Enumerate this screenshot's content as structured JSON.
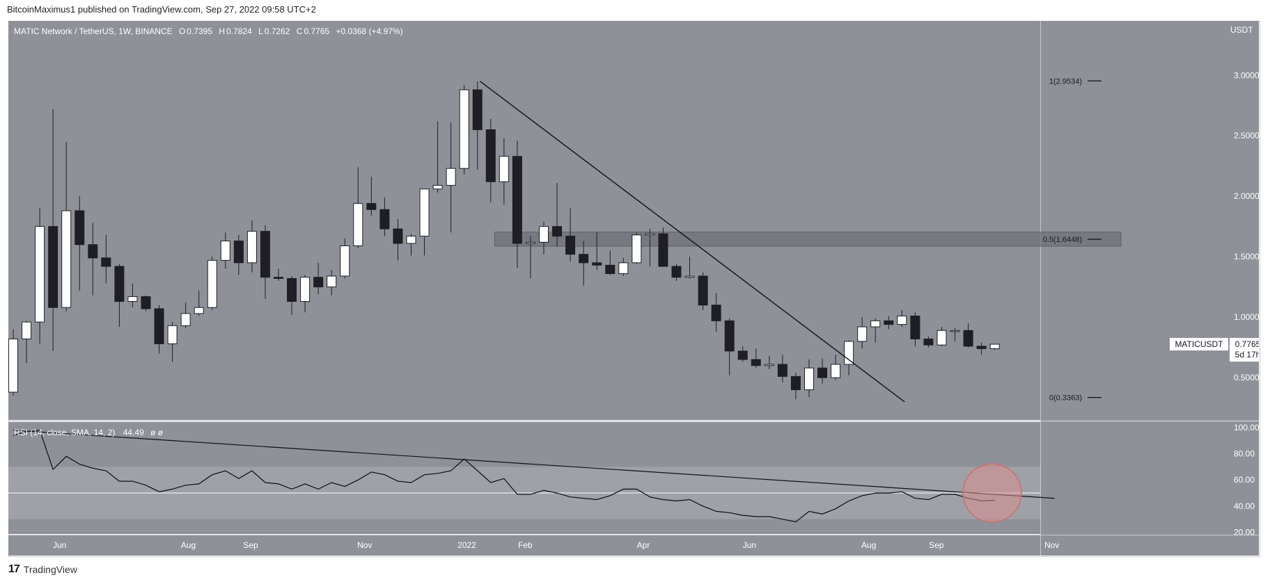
{
  "header": {
    "publisher": "BitcoinMaximus1 published on TradingView.com, Sep 27, 2022 09:58 UTC+2"
  },
  "legend": {
    "pair": "MATIC Network / TetherUS, 1W, BINANCE",
    "open_label": "O",
    "open": "0.7395",
    "high_label": "H",
    "high": "0.7824",
    "low_label": "L",
    "low": "0.7262",
    "close_label": "C",
    "close": "0.7765",
    "change": "+0.0368 (+4.97%)"
  },
  "price_axis": {
    "unit": "USDT",
    "ticks": [
      "3.0000",
      "2.5000",
      "2.0000",
      "1.5000",
      "1.0000",
      "0.5000"
    ],
    "symbol_label": "MATICUSDT",
    "last_price": "0.7765",
    "countdown": "5d 17h"
  },
  "rsi": {
    "label": "RSI (14, close, SMA, 14, 2)",
    "value": "44.49",
    "extra": "ø ø",
    "ticks": [
      "100.00",
      "80.00",
      "60.00",
      "40.00",
      "20.00"
    ]
  },
  "fib_labels": {
    "level_1": "1(2.9534)",
    "level_05": "0.5(1.6448)",
    "level_0": "0(0.3363)"
  },
  "x_axis": {
    "labels": [
      "Jun",
      "Aug",
      "Sep",
      "Nov",
      "2022",
      "Feb",
      "Apr",
      "Jun",
      "Aug",
      "Sep",
      "Nov"
    ]
  },
  "footer": {
    "logo_mark": "17",
    "brand": "TradingView"
  },
  "colors": {
    "panel_bg": "#8f9198",
    "candle_up": "#ffffff",
    "candle_down": "#1e1e24",
    "trendline": "#101014",
    "rsi_band": "#9fa1a7",
    "highlight_circle": "#d98f8f"
  },
  "chart_data": [
    {
      "type": "candlestick",
      "title": "MATIC Network / TetherUS, 1W, BINANCE",
      "ylabel": "USDT",
      "ylim": [
        0.15,
        3.45
      ],
      "candles": [
        {
          "o": 0.38,
          "h": 0.9,
          "l": 0.35,
          "c": 0.82
        },
        {
          "o": 0.82,
          "h": 0.97,
          "l": 0.62,
          "c": 0.96
        },
        {
          "o": 0.96,
          "h": 1.9,
          "l": 0.78,
          "c": 1.75
        },
        {
          "o": 1.75,
          "h": 2.72,
          "l": 0.72,
          "c": 1.08
        },
        {
          "o": 1.08,
          "h": 2.45,
          "l": 1.05,
          "c": 1.88
        },
        {
          "o": 1.88,
          "h": 2.0,
          "l": 1.22,
          "c": 1.6
        },
        {
          "o": 1.6,
          "h": 1.78,
          "l": 1.18,
          "c": 1.49
        },
        {
          "o": 1.49,
          "h": 1.68,
          "l": 1.28,
          "c": 1.42
        },
        {
          "o": 1.42,
          "h": 1.44,
          "l": 0.92,
          "c": 1.13
        },
        {
          "o": 1.13,
          "h": 1.28,
          "l": 1.08,
          "c": 1.17
        },
        {
          "o": 1.17,
          "h": 1.18,
          "l": 1.05,
          "c": 1.07
        },
        {
          "o": 1.07,
          "h": 1.1,
          "l": 0.7,
          "c": 0.78
        },
        {
          "o": 0.78,
          "h": 0.96,
          "l": 0.63,
          "c": 0.93
        },
        {
          "o": 0.93,
          "h": 1.12,
          "l": 0.91,
          "c": 1.03
        },
        {
          "o": 1.03,
          "h": 1.22,
          "l": 1.01,
          "c": 1.08
        },
        {
          "o": 1.08,
          "h": 1.5,
          "l": 1.06,
          "c": 1.47
        },
        {
          "o": 1.47,
          "h": 1.7,
          "l": 1.4,
          "c": 1.63
        },
        {
          "o": 1.63,
          "h": 1.68,
          "l": 1.35,
          "c": 1.45
        },
        {
          "o": 1.45,
          "h": 1.8,
          "l": 1.37,
          "c": 1.71
        },
        {
          "o": 1.71,
          "h": 1.76,
          "l": 1.15,
          "c": 1.33
        },
        {
          "o": 1.33,
          "h": 1.4,
          "l": 1.3,
          "c": 1.32
        },
        {
          "o": 1.32,
          "h": 1.34,
          "l": 1.02,
          "c": 1.13
        },
        {
          "o": 1.13,
          "h": 1.35,
          "l": 1.04,
          "c": 1.33
        },
        {
          "o": 1.33,
          "h": 1.45,
          "l": 1.19,
          "c": 1.25
        },
        {
          "o": 1.25,
          "h": 1.39,
          "l": 1.18,
          "c": 1.34
        },
        {
          "o": 1.34,
          "h": 1.65,
          "l": 1.32,
          "c": 1.59
        },
        {
          "o": 1.59,
          "h": 2.24,
          "l": 1.57,
          "c": 1.94
        },
        {
          "o": 1.94,
          "h": 2.16,
          "l": 1.84,
          "c": 1.89
        },
        {
          "o": 1.89,
          "h": 1.99,
          "l": 1.67,
          "c": 1.73
        },
        {
          "o": 1.73,
          "h": 1.81,
          "l": 1.47,
          "c": 1.61
        },
        {
          "o": 1.61,
          "h": 1.69,
          "l": 1.51,
          "c": 1.67
        },
        {
          "o": 1.67,
          "h": 2.06,
          "l": 1.51,
          "c": 2.06
        },
        {
          "o": 2.06,
          "h": 2.62,
          "l": 2.03,
          "c": 2.09
        },
        {
          "o": 2.09,
          "h": 2.61,
          "l": 1.7,
          "c": 2.23
        },
        {
          "o": 2.23,
          "h": 2.92,
          "l": 2.18,
          "c": 2.88
        },
        {
          "o": 2.88,
          "h": 2.95,
          "l": 2.22,
          "c": 2.55
        },
        {
          "o": 2.55,
          "h": 2.64,
          "l": 1.95,
          "c": 2.12
        },
        {
          "o": 2.12,
          "h": 2.48,
          "l": 1.93,
          "c": 2.33
        },
        {
          "o": 2.33,
          "h": 2.46,
          "l": 1.41,
          "c": 1.61
        },
        {
          "o": 1.61,
          "h": 1.67,
          "l": 1.32,
          "c": 1.62
        },
        {
          "o": 1.62,
          "h": 1.79,
          "l": 1.52,
          "c": 1.75
        },
        {
          "o": 1.75,
          "h": 2.11,
          "l": 1.58,
          "c": 1.67
        },
        {
          "o": 1.67,
          "h": 1.9,
          "l": 1.46,
          "c": 1.52
        },
        {
          "o": 1.52,
          "h": 1.63,
          "l": 1.26,
          "c": 1.45
        },
        {
          "o": 1.45,
          "h": 1.7,
          "l": 1.39,
          "c": 1.43
        },
        {
          "o": 1.43,
          "h": 1.55,
          "l": 1.35,
          "c": 1.36
        },
        {
          "o": 1.36,
          "h": 1.49,
          "l": 1.34,
          "c": 1.45
        },
        {
          "o": 1.45,
          "h": 1.7,
          "l": 1.44,
          "c": 1.68
        },
        {
          "o": 1.68,
          "h": 1.73,
          "l": 1.42,
          "c": 1.69
        },
        {
          "o": 1.69,
          "h": 1.74,
          "l": 1.43,
          "c": 1.42
        },
        {
          "o": 1.42,
          "h": 1.44,
          "l": 1.3,
          "c": 1.33
        },
        {
          "o": 1.33,
          "h": 1.5,
          "l": 1.32,
          "c": 1.34
        },
        {
          "o": 1.34,
          "h": 1.37,
          "l": 1.06,
          "c": 1.1
        },
        {
          "o": 1.1,
          "h": 1.2,
          "l": 0.88,
          "c": 0.97
        },
        {
          "o": 0.97,
          "h": 0.99,
          "l": 0.52,
          "c": 0.72
        },
        {
          "o": 0.72,
          "h": 0.76,
          "l": 0.63,
          "c": 0.65
        },
        {
          "o": 0.65,
          "h": 0.74,
          "l": 0.58,
          "c": 0.6
        },
        {
          "o": 0.6,
          "h": 0.68,
          "l": 0.57,
          "c": 0.61
        },
        {
          "o": 0.61,
          "h": 0.69,
          "l": 0.46,
          "c": 0.51
        },
        {
          "o": 0.51,
          "h": 0.54,
          "l": 0.32,
          "c": 0.4
        },
        {
          "o": 0.4,
          "h": 0.65,
          "l": 0.34,
          "c": 0.58
        },
        {
          "o": 0.58,
          "h": 0.66,
          "l": 0.45,
          "c": 0.5
        },
        {
          "o": 0.5,
          "h": 0.69,
          "l": 0.48,
          "c": 0.61
        },
        {
          "o": 0.61,
          "h": 0.81,
          "l": 0.52,
          "c": 0.8
        },
        {
          "o": 0.8,
          "h": 1.0,
          "l": 0.74,
          "c": 0.92
        },
        {
          "o": 0.92,
          "h": 0.99,
          "l": 0.79,
          "c": 0.97
        },
        {
          "o": 0.97,
          "h": 1.01,
          "l": 0.9,
          "c": 0.94
        },
        {
          "o": 0.94,
          "h": 1.06,
          "l": 0.92,
          "c": 1.01
        },
        {
          "o": 1.01,
          "h": 1.04,
          "l": 0.76,
          "c": 0.82
        },
        {
          "o": 0.82,
          "h": 0.84,
          "l": 0.75,
          "c": 0.77
        },
        {
          "o": 0.77,
          "h": 0.92,
          "l": 0.76,
          "c": 0.89
        },
        {
          "o": 0.89,
          "h": 0.91,
          "l": 0.8,
          "c": 0.89
        },
        {
          "o": 0.89,
          "h": 0.95,
          "l": 0.75,
          "c": 0.76
        },
        {
          "o": 0.76,
          "h": 0.79,
          "l": 0.69,
          "c": 0.74
        },
        {
          "o": 0.74,
          "h": 0.78,
          "l": 0.73,
          "c": 0.7765
        }
      ],
      "horizontal_zone": {
        "from": 1.5871,
        "to": 1.7035
      },
      "fib_levels": [
        {
          "label": "1(2.9534)",
          "value": 2.9534
        },
        {
          "label": "0.5(1.6448)",
          "value": 1.6448
        },
        {
          "label": "0(0.3363)",
          "value": 0.3363
        }
      ],
      "descending_trendline": [
        {
          "week": 35.2,
          "price": 2.95
        },
        {
          "week": 67.2,
          "price": 0.3
        }
      ]
    },
    {
      "type": "line",
      "title": "RSI (14, close, SMA, 14, 2)",
      "ylim": [
        18.7,
        104.2
      ],
      "bands": {
        "lower": 30,
        "middle": 50,
        "upper": 70
      },
      "values": [
        94,
        97,
        98,
        68,
        78,
        72,
        69,
        67,
        59,
        59,
        56,
        51,
        53,
        56,
        57,
        64,
        67,
        61,
        67,
        58,
        57,
        53,
        57,
        53,
        58,
        55,
        60,
        66,
        64,
        59,
        58,
        64,
        65,
        67,
        76,
        67,
        58,
        61,
        49,
        49,
        52,
        50,
        47,
        46,
        45,
        48,
        53,
        53,
        47,
        45,
        44,
        45,
        40,
        36,
        35,
        33,
        32,
        32,
        30,
        28,
        36,
        34,
        38,
        44,
        48,
        50,
        50,
        51,
        46,
        45,
        49,
        49,
        46,
        44,
        44.49
      ],
      "descending_trendline": [
        {
          "week": 0,
          "value": 98
        },
        {
          "week": 78.5,
          "value": 46
        }
      ],
      "highlight_circle": {
        "week": 73.8,
        "value": 50
      }
    }
  ]
}
